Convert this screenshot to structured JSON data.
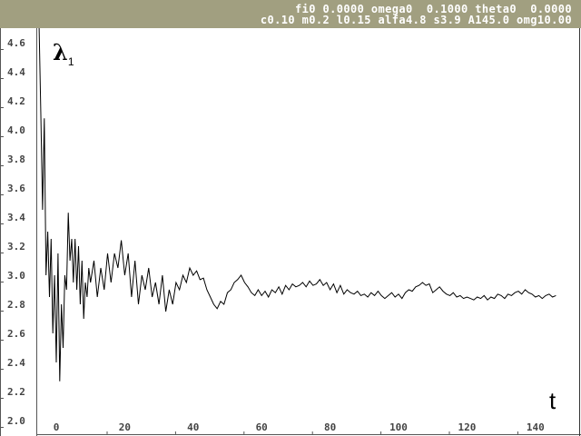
{
  "header": {
    "line1": "fi0 0.0000 omega0  0.1000 theta0  0.0000",
    "line2": "c0.10 m0.2 l0.15 alfa4.8 s3.9 A145.0 omg10.00",
    "background": "#a19f80"
  },
  "chart_data": {
    "type": "line",
    "ylabel": "λ",
    "ylabel_subscript": "1",
    "xlabel": "t",
    "xlim": [
      -5,
      147
    ],
    "ylim": [
      2.0,
      4.7
    ],
    "grid": false,
    "xticks": [
      "0",
      "20",
      "40",
      "60",
      "80",
      "100",
      "120",
      "140"
    ],
    "yticks": [
      "4.6",
      "4.4",
      "4.2",
      "4.0",
      "3.8",
      "3.6",
      "3.4",
      "3.2",
      "3.0",
      "2.8",
      "2.6",
      "2.4",
      "2.2",
      "2.0"
    ],
    "series": [
      {
        "color": "#000000",
        "x": [
          -5,
          -4.5,
          -4,
          -3.5,
          -3,
          -2.5,
          -2,
          -1.5,
          -1,
          -0.5,
          0,
          0.5,
          1,
          1.5,
          2,
          2.5,
          3,
          3.5,
          4,
          4.5,
          5,
          5.5,
          6,
          6.5,
          7,
          7.5,
          8,
          8.5,
          9,
          9.5,
          10,
          11,
          12,
          13,
          14,
          15,
          16,
          17,
          18,
          19,
          20,
          21,
          22,
          23,
          24,
          25,
          26,
          27,
          28,
          29,
          30,
          31,
          32,
          33,
          34,
          35,
          36,
          37,
          38,
          39,
          40,
          41,
          42,
          43,
          44,
          45,
          46,
          47,
          48,
          49,
          50,
          51,
          52,
          53,
          54,
          55,
          56,
          57,
          58,
          59,
          60,
          61,
          62,
          63,
          64,
          65,
          66,
          67,
          68,
          69,
          70,
          71,
          72,
          73,
          74,
          75,
          76,
          77,
          78,
          79,
          80,
          81,
          82,
          83,
          84,
          85,
          86,
          87,
          88,
          89,
          90,
          91,
          92,
          93,
          94,
          95,
          96,
          97,
          98,
          99,
          100,
          101,
          102,
          103,
          104,
          105,
          106,
          107,
          108,
          109,
          110,
          111,
          112,
          113,
          114,
          115,
          116,
          117,
          118,
          119,
          120,
          121,
          122,
          123,
          124,
          125,
          126,
          127,
          128,
          129,
          130,
          131,
          132,
          133,
          134,
          135,
          136,
          137,
          138,
          139,
          140,
          141,
          142,
          143,
          144,
          145,
          146
        ],
        "y": [
          4.7,
          4.1,
          3.45,
          4.08,
          3.0,
          3.3,
          2.85,
          3.25,
          2.6,
          3.0,
          2.4,
          3.15,
          2.27,
          2.8,
          2.5,
          3.0,
          2.9,
          3.43,
          3.1,
          3.25,
          2.95,
          3.25,
          2.9,
          3.2,
          2.8,
          3.1,
          2.7,
          2.95,
          2.85,
          3.05,
          2.95,
          3.1,
          2.85,
          3.05,
          2.9,
          3.15,
          2.95,
          3.15,
          3.05,
          3.24,
          3.0,
          3.15,
          2.85,
          3.1,
          2.8,
          3.0,
          2.9,
          3.05,
          2.85,
          2.95,
          2.8,
          3.0,
          2.75,
          2.9,
          2.8,
          2.95,
          2.9,
          3.0,
          2.95,
          3.05,
          3.0,
          3.03,
          2.97,
          2.98,
          2.9,
          2.85,
          2.8,
          2.77,
          2.82,
          2.8,
          2.88,
          2.9,
          2.95,
          2.97,
          3.0,
          2.95,
          2.92,
          2.88,
          2.86,
          2.9,
          2.86,
          2.89,
          2.85,
          2.9,
          2.88,
          2.92,
          2.87,
          2.93,
          2.9,
          2.94,
          2.92,
          2.93,
          2.95,
          2.92,
          2.96,
          2.93,
          2.94,
          2.97,
          2.93,
          2.95,
          2.9,
          2.94,
          2.88,
          2.93,
          2.87,
          2.9,
          2.88,
          2.87,
          2.89,
          2.86,
          2.87,
          2.85,
          2.88,
          2.86,
          2.89,
          2.86,
          2.84,
          2.86,
          2.88,
          2.85,
          2.87,
          2.84,
          2.88,
          2.9,
          2.89,
          2.92,
          2.93,
          2.95,
          2.93,
          2.94,
          2.88,
          2.9,
          2.92,
          2.89,
          2.87,
          2.86,
          2.88,
          2.85,
          2.86,
          2.84,
          2.85,
          2.84,
          2.83,
          2.85,
          2.84,
          2.86,
          2.83,
          2.85,
          2.84,
          2.87,
          2.86,
          2.84,
          2.87,
          2.86,
          2.88,
          2.89,
          2.87,
          2.9,
          2.88,
          2.87,
          2.85,
          2.86,
          2.84,
          2.86,
          2.87,
          2.85,
          2.86
        ]
      }
    ]
  }
}
